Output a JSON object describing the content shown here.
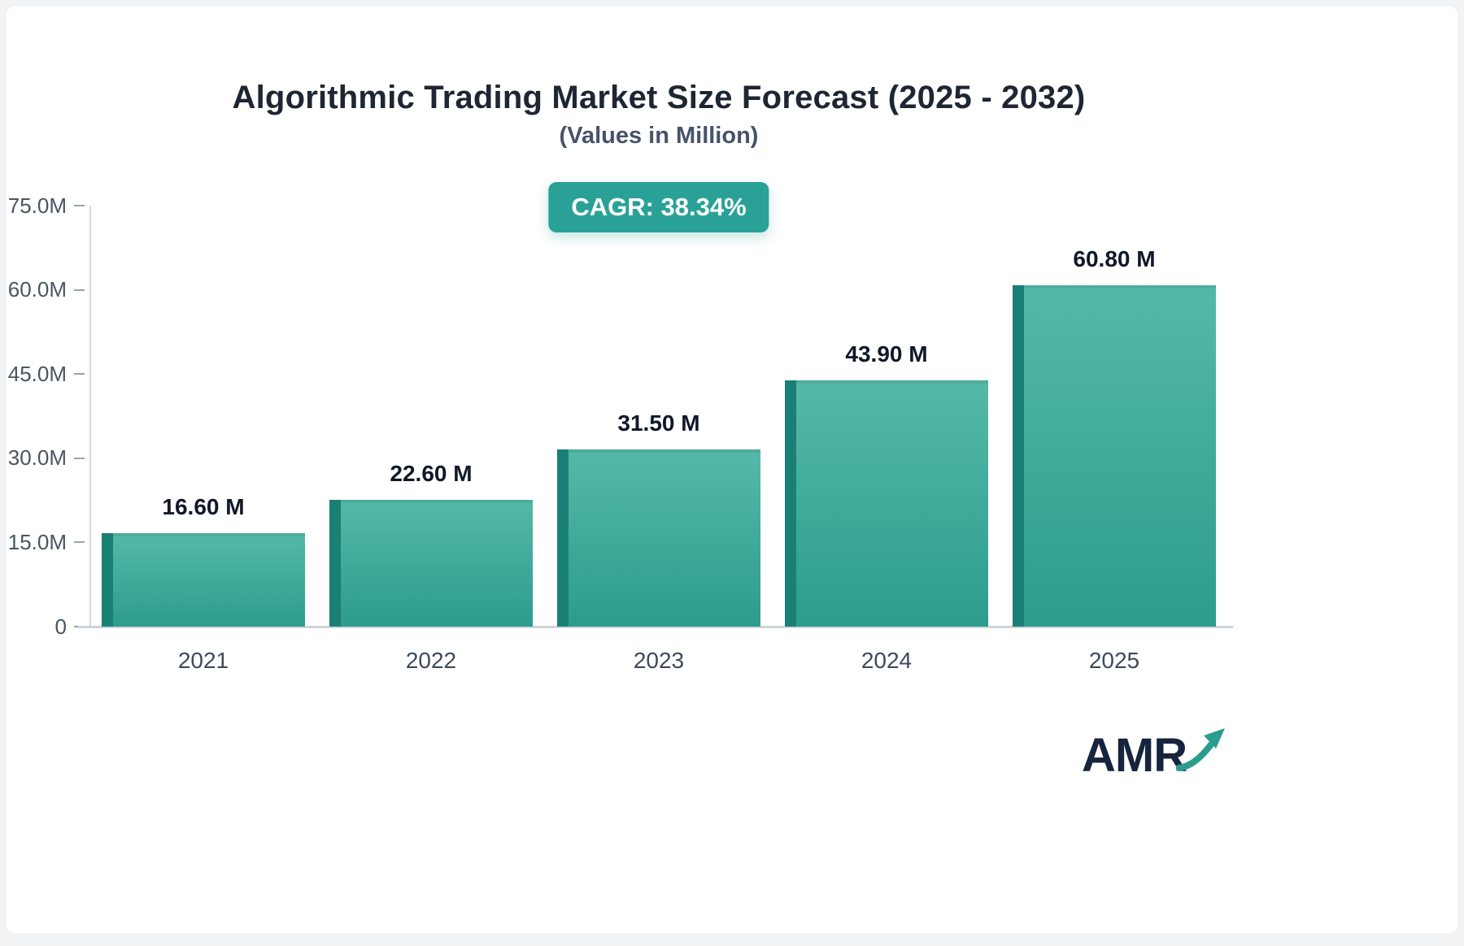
{
  "header": {
    "title": "Algorithmic Trading Market Size Forecast (2025 - 2032)",
    "subtitle": "(Values in Million)",
    "cagr_badge": "CAGR: 38.34%"
  },
  "chart_data": {
    "type": "bar",
    "title": "Algorithmic Trading Market Size Forecast (2025 - 2032)",
    "subtitle": "(Values in Million)",
    "categories": [
      "2021",
      "2022",
      "2023",
      "2024",
      "2025"
    ],
    "values": [
      16.6,
      22.6,
      31.5,
      43.9,
      60.8
    ],
    "value_labels": [
      "16.60 M",
      "22.60 M",
      "31.50 M",
      "43.90 M",
      "60.80 M"
    ],
    "unit": "Million",
    "ylim": [
      0,
      75
    ],
    "y_ticks": [
      0,
      15,
      30,
      45,
      60,
      75
    ],
    "y_tick_labels": [
      "0",
      "15.0M",
      "30.0M",
      "45.0M",
      "60.0M",
      "75.0M"
    ],
    "grid": false,
    "legend": "none",
    "annotation": "CAGR: 38.34%",
    "bar_color_top": "#55b9a8",
    "bar_color_bottom": "#2d9c8d",
    "bar_edge_color": "#1a7f74",
    "badge_color": "#2aa197"
  },
  "logo": {
    "text": "AMR",
    "arrow_color": "#2a9d8f"
  }
}
